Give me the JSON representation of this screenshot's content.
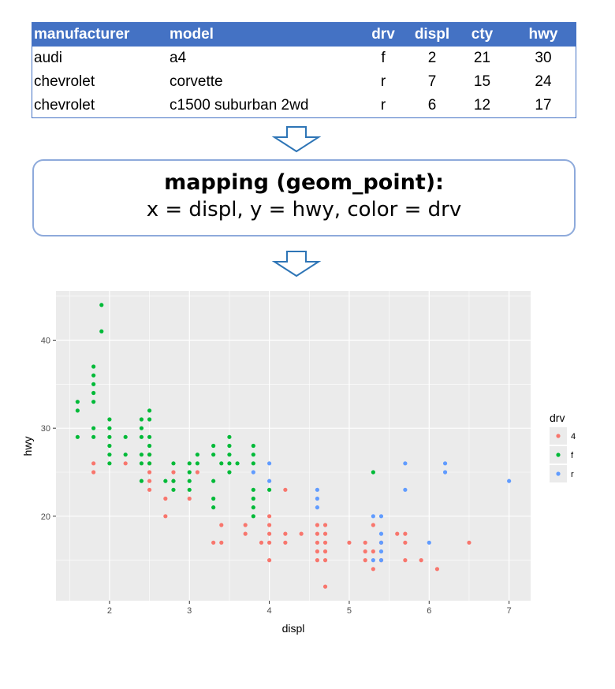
{
  "table": {
    "headers": [
      "manufacturer",
      "model",
      "drv",
      "displ",
      "cty",
      "hwy"
    ],
    "rows": [
      [
        "audi",
        "a4",
        "f",
        "2",
        "21",
        "30"
      ],
      [
        "chevrolet",
        "corvette",
        "r",
        "7",
        "15",
        "24"
      ],
      [
        "chevrolet",
        "c1500 suburban 2wd",
        "r",
        "6",
        "12",
        "17"
      ]
    ],
    "header_color": "#4472c4"
  },
  "mapping": {
    "title": "mapping (geom_point):",
    "body": "x = displ, y = hwy, color = drv"
  },
  "colors": {
    "arrow": "#2e75b6",
    "box_border": "#8eaadb",
    "panel_bg": "#ebebeb",
    "grid": "#ffffff"
  },
  "chart_data": {
    "type": "scatter",
    "xlabel": "displ",
    "ylabel": "hwy",
    "xlim": [
      1.33,
      7.27
    ],
    "ylim": [
      10.4,
      45.6
    ],
    "x_ticks": [
      2,
      3,
      4,
      5,
      6,
      7
    ],
    "y_ticks": [
      20,
      30,
      40
    ],
    "grid": true,
    "legend": {
      "title": "drv",
      "placement": "right"
    },
    "series": [
      {
        "name": "4",
        "color": "#f8766d",
        "points": [
          [
            1.8,
            26
          ],
          [
            1.8,
            25
          ],
          [
            2.2,
            26
          ],
          [
            2.5,
            27
          ],
          [
            2.5,
            26
          ],
          [
            2.5,
            25
          ],
          [
            2.5,
            24
          ],
          [
            2.5,
            23
          ],
          [
            2.7,
            22
          ],
          [
            2.7,
            20
          ],
          [
            2.8,
            25
          ],
          [
            2.8,
            24
          ],
          [
            3.0,
            22
          ],
          [
            3.1,
            25
          ],
          [
            3.3,
            17
          ],
          [
            3.4,
            17
          ],
          [
            3.4,
            19
          ],
          [
            3.7,
            19
          ],
          [
            3.7,
            18
          ],
          [
            3.9,
            17
          ],
          [
            4.0,
            20
          ],
          [
            4.0,
            19
          ],
          [
            4.0,
            18
          ],
          [
            4.0,
            17
          ],
          [
            4.0,
            15
          ],
          [
            4.2,
            18
          ],
          [
            4.2,
            17
          ],
          [
            4.2,
            23
          ],
          [
            4.4,
            18
          ],
          [
            4.6,
            19
          ],
          [
            4.6,
            18
          ],
          [
            4.6,
            17
          ],
          [
            4.6,
            16
          ],
          [
            4.6,
            15
          ],
          [
            4.7,
            19
          ],
          [
            4.7,
            18
          ],
          [
            4.7,
            17
          ],
          [
            4.7,
            16
          ],
          [
            4.7,
            15
          ],
          [
            4.7,
            12
          ],
          [
            5.0,
            17
          ],
          [
            5.2,
            17
          ],
          [
            5.2,
            16
          ],
          [
            5.2,
            15
          ],
          [
            5.3,
            19
          ],
          [
            5.3,
            16
          ],
          [
            5.3,
            14
          ],
          [
            5.4,
            17
          ],
          [
            5.4,
            15
          ],
          [
            5.6,
            18
          ],
          [
            5.7,
            18
          ],
          [
            5.7,
            17
          ],
          [
            5.7,
            15
          ],
          [
            5.9,
            15
          ],
          [
            6.1,
            14
          ],
          [
            6.5,
            17
          ]
        ]
      },
      {
        "name": "f",
        "color": "#00ba38",
        "points": [
          [
            1.6,
            33
          ],
          [
            1.6,
            32
          ],
          [
            1.6,
            29
          ],
          [
            1.8,
            37
          ],
          [
            1.8,
            36
          ],
          [
            1.8,
            35
          ],
          [
            1.8,
            34
          ],
          [
            1.8,
            33
          ],
          [
            1.8,
            30
          ],
          [
            1.8,
            29
          ],
          [
            1.9,
            44
          ],
          [
            1.9,
            41
          ],
          [
            2.0,
            31
          ],
          [
            2.0,
            30
          ],
          [
            2.0,
            29
          ],
          [
            2.0,
            28
          ],
          [
            2.0,
            27
          ],
          [
            2.0,
            26
          ],
          [
            2.2,
            29
          ],
          [
            2.2,
            27
          ],
          [
            2.4,
            31
          ],
          [
            2.4,
            30
          ],
          [
            2.4,
            29
          ],
          [
            2.4,
            27
          ],
          [
            2.4,
            26
          ],
          [
            2.4,
            24
          ],
          [
            2.5,
            32
          ],
          [
            2.5,
            31
          ],
          [
            2.5,
            29
          ],
          [
            2.5,
            28
          ],
          [
            2.5,
            27
          ],
          [
            2.5,
            26
          ],
          [
            2.7,
            24
          ],
          [
            2.8,
            26
          ],
          [
            2.8,
            24
          ],
          [
            2.8,
            23
          ],
          [
            3.0,
            26
          ],
          [
            3.0,
            25
          ],
          [
            3.0,
            24
          ],
          [
            3.0,
            23
          ],
          [
            3.1,
            27
          ],
          [
            3.1,
            26
          ],
          [
            3.3,
            28
          ],
          [
            3.3,
            27
          ],
          [
            3.3,
            24
          ],
          [
            3.3,
            22
          ],
          [
            3.3,
            21
          ],
          [
            3.4,
            26
          ],
          [
            3.5,
            29
          ],
          [
            3.5,
            28
          ],
          [
            3.5,
            27
          ],
          [
            3.5,
            26
          ],
          [
            3.5,
            25
          ],
          [
            3.6,
            26
          ],
          [
            3.8,
            28
          ],
          [
            3.8,
            27
          ],
          [
            3.8,
            26
          ],
          [
            3.8,
            23
          ],
          [
            3.8,
            22
          ],
          [
            3.8,
            21
          ],
          [
            3.8,
            20
          ],
          [
            4.0,
            23
          ],
          [
            5.3,
            25
          ]
        ]
      },
      {
        "name": "r",
        "color": "#619cff",
        "points": [
          [
            3.8,
            25
          ],
          [
            4.0,
            26
          ],
          [
            4.0,
            24
          ],
          [
            4.6,
            23
          ],
          [
            4.6,
            22
          ],
          [
            4.6,
            21
          ],
          [
            5.3,
            20
          ],
          [
            5.3,
            15
          ],
          [
            5.4,
            20
          ],
          [
            5.4,
            18
          ],
          [
            5.4,
            17
          ],
          [
            5.4,
            16
          ],
          [
            5.4,
            15
          ],
          [
            5.7,
            26
          ],
          [
            5.7,
            23
          ],
          [
            6.0,
            17
          ],
          [
            6.2,
            26
          ],
          [
            6.2,
            25
          ],
          [
            7.0,
            24
          ]
        ]
      }
    ]
  }
}
